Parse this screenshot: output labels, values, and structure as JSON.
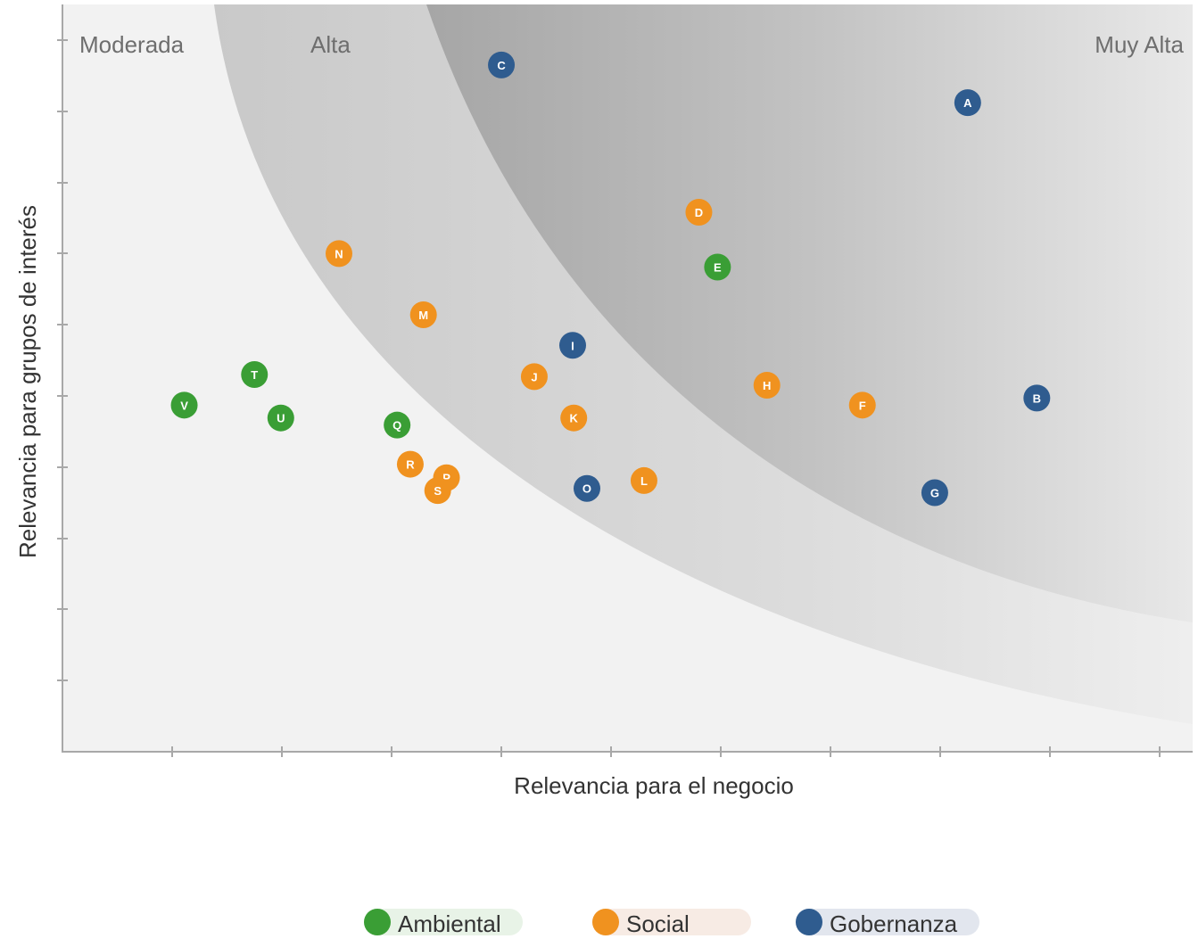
{
  "chart_data": {
    "type": "scatter",
    "xlabel": "Relevancia para el negocio",
    "ylabel": "Relevancia para grupos de interés",
    "xlim": [
      0,
      10.3
    ],
    "ylim": [
      0,
      10.5
    ],
    "grid": false,
    "zones": [
      "Moderada",
      "Alta",
      "Muy Alta"
    ],
    "legend_placement": "bottom",
    "series": [
      {
        "name": "Ambiental",
        "color": "#3a9e35",
        "points": [
          {
            "label": "E",
            "x": 5.97,
            "y": 6.81
          },
          {
            "label": "T",
            "x": 1.75,
            "y": 5.3
          },
          {
            "label": "V",
            "x": 1.11,
            "y": 4.87
          },
          {
            "label": "U",
            "x": 1.99,
            "y": 4.69
          },
          {
            "label": "Q",
            "x": 3.05,
            "y": 4.59
          }
        ]
      },
      {
        "name": "Social",
        "color": "#f0921f",
        "points": [
          {
            "label": "D",
            "x": 5.8,
            "y": 7.58
          },
          {
            "label": "N",
            "x": 2.52,
            "y": 7.0
          },
          {
            "label": "M",
            "x": 3.29,
            "y": 6.14
          },
          {
            "label": "J",
            "x": 4.3,
            "y": 5.27
          },
          {
            "label": "H",
            "x": 6.42,
            "y": 5.15
          },
          {
            "label": "F",
            "x": 7.29,
            "y": 4.87
          },
          {
            "label": "K",
            "x": 4.66,
            "y": 4.69
          },
          {
            "label": "R",
            "x": 3.17,
            "y": 4.04
          },
          {
            "label": "P",
            "x": 3.5,
            "y": 3.85
          },
          {
            "label": "L",
            "x": 5.3,
            "y": 3.81
          },
          {
            "label": "S",
            "x": 3.42,
            "y": 3.67
          }
        ]
      },
      {
        "name": "Gobernanza",
        "color": "#2f5c8f",
        "points": [
          {
            "label": "C",
            "x": 4.0,
            "y": 9.65
          },
          {
            "label": "A",
            "x": 8.25,
            "y": 9.12
          },
          {
            "label": "I",
            "x": 4.65,
            "y": 5.71
          },
          {
            "label": "B",
            "x": 8.88,
            "y": 4.97
          },
          {
            "label": "O",
            "x": 4.78,
            "y": 3.7
          },
          {
            "label": "G",
            "x": 7.95,
            "y": 3.64
          }
        ]
      }
    ]
  },
  "legend": [
    {
      "label": "Ambiental",
      "color": "#3a9e35",
      "bg": "#e8f3e7"
    },
    {
      "label": "Social",
      "color": "#f0921f",
      "bg": "#f7ebe4"
    },
    {
      "label": "Gobernanza",
      "color": "#2f5c8f",
      "bg": "#e2e6ee"
    }
  ]
}
